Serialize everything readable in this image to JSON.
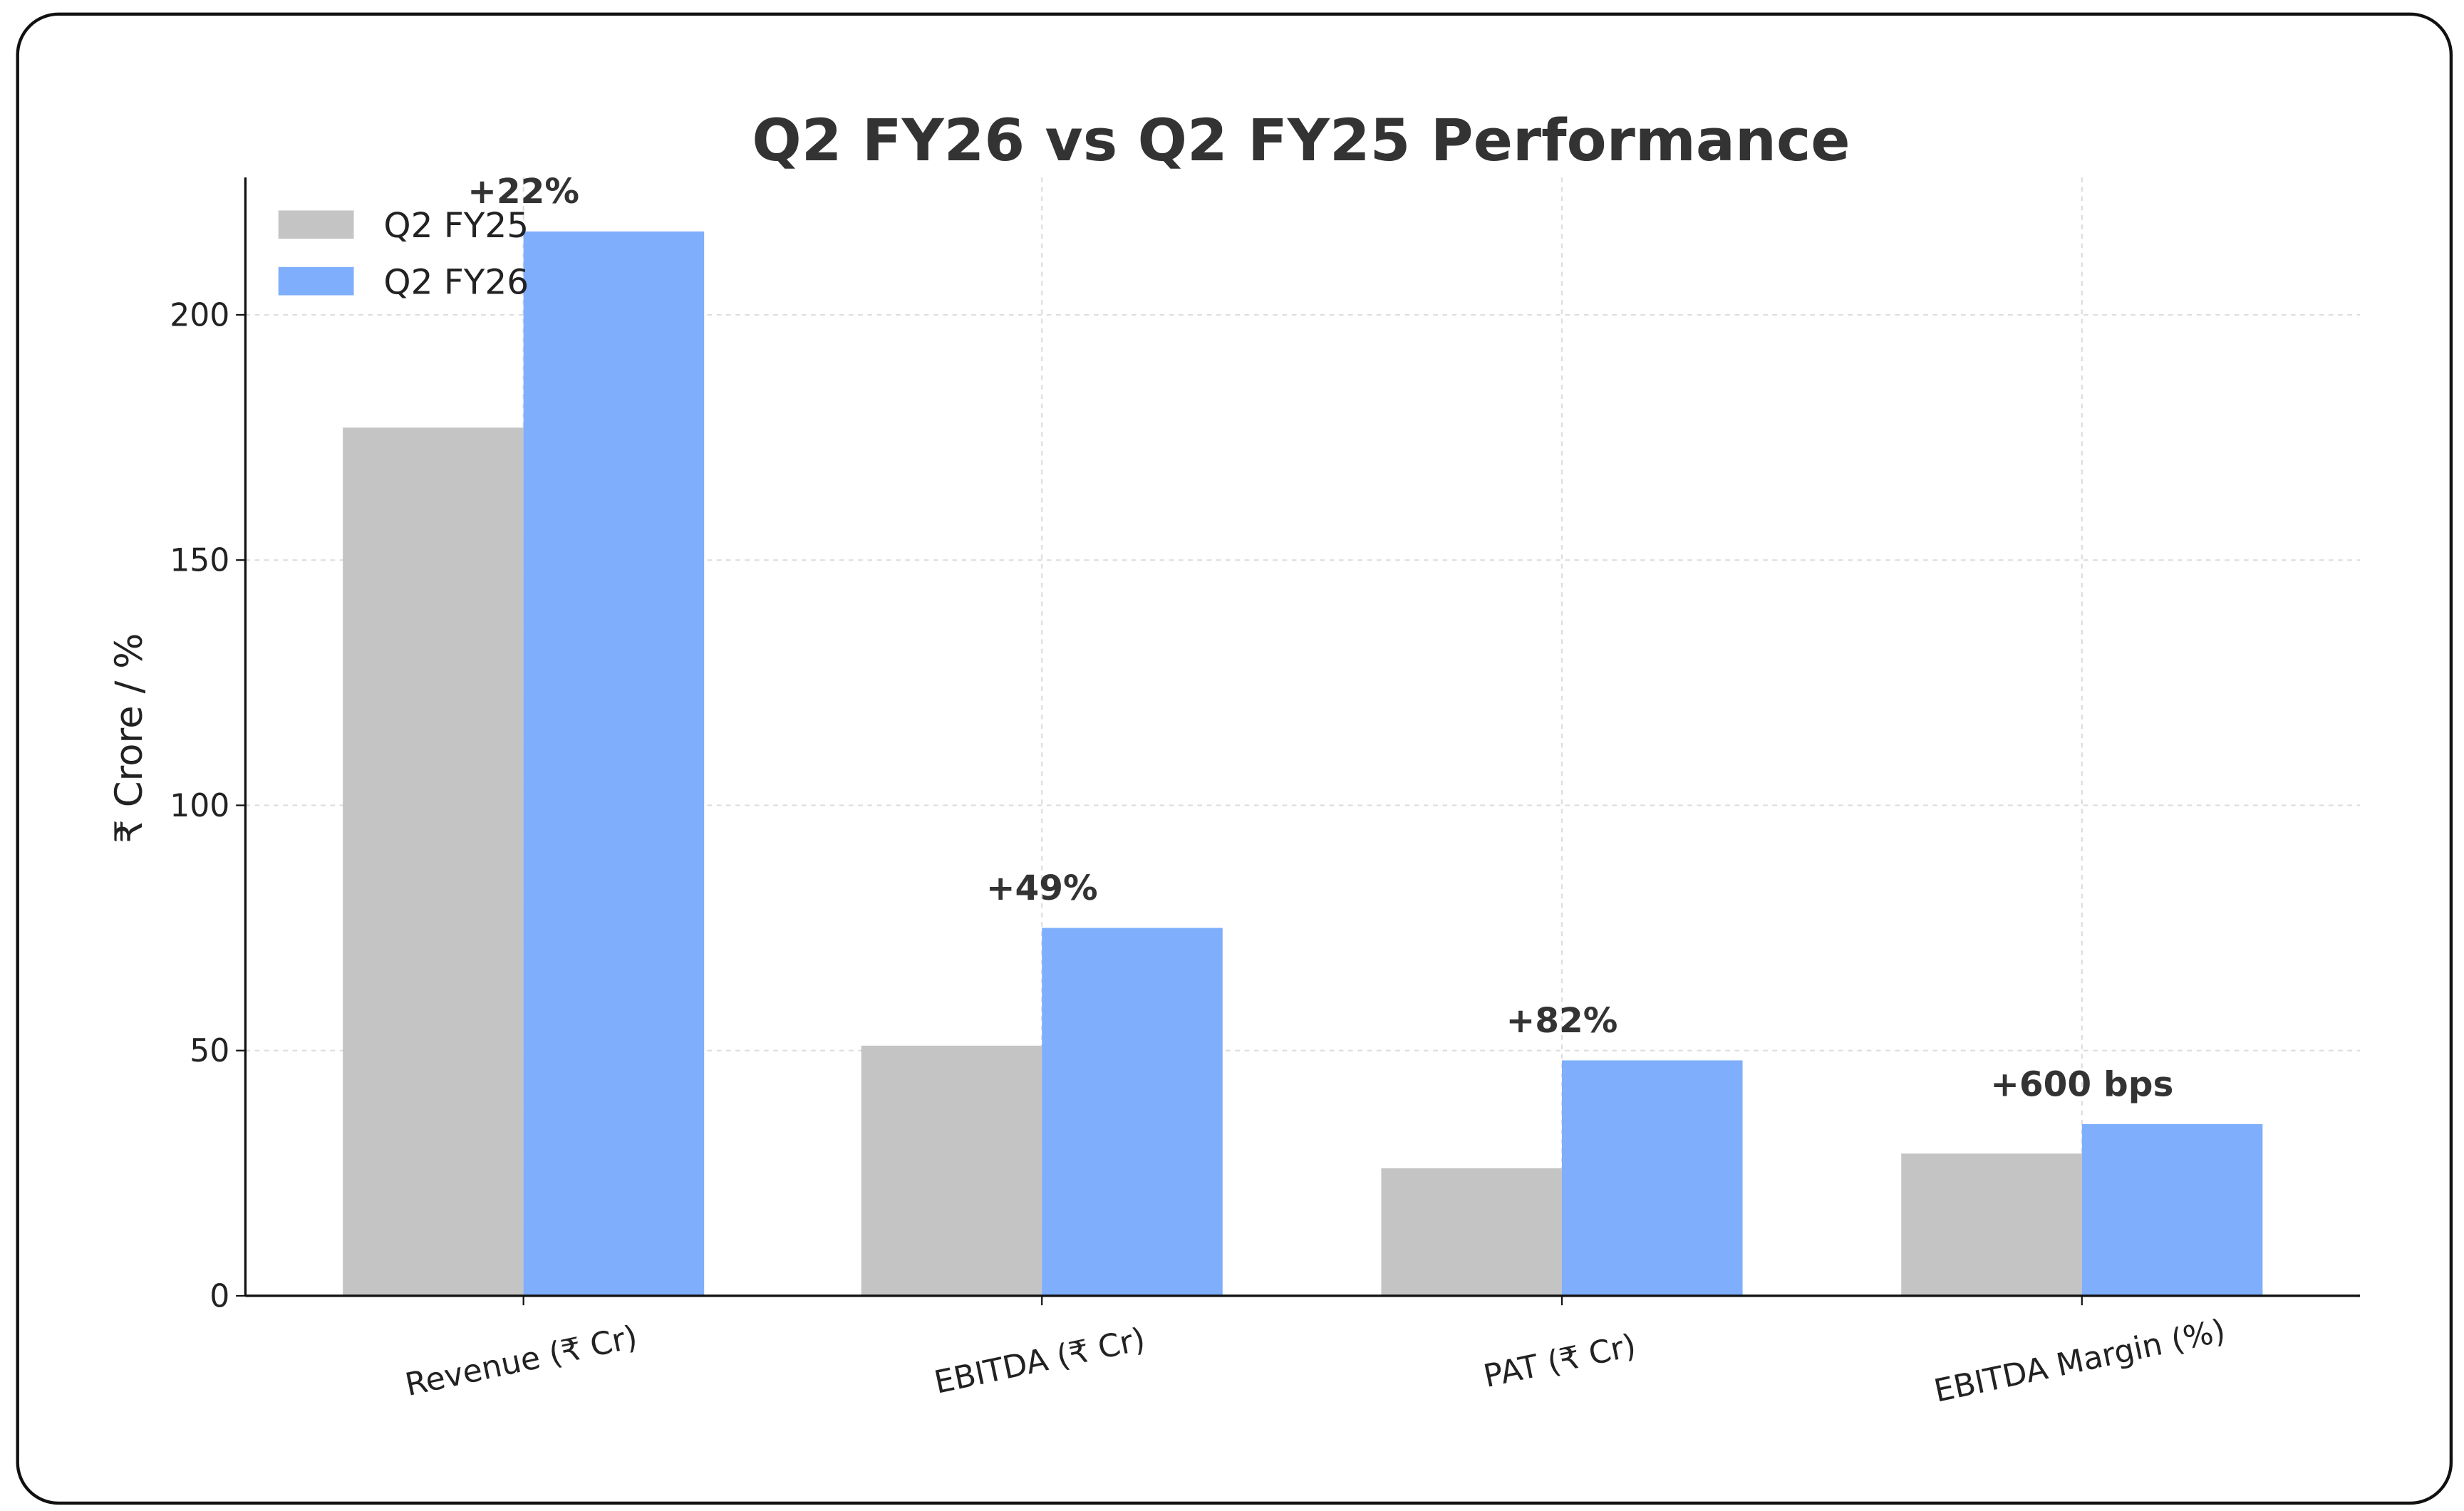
{
  "chart_data": {
    "type": "bar",
    "title": "Q2 FY26 vs Q2 FY25 Performance",
    "xlabel": "",
    "ylabel": "₹ Crore / %",
    "ylim": [
      0,
      228
    ],
    "yticks": [
      0,
      50,
      100,
      150,
      200
    ],
    "grid": true,
    "legend_position": "top-left",
    "categories": [
      "Revenue (₹ Cr)",
      "EBITDA (₹ Cr)",
      "PAT (₹ Cr)",
      "EBITDA Margin (%)"
    ],
    "series": [
      {
        "name": "Q2 FY25",
        "color": "#c4c4c4",
        "values": [
          177,
          51,
          26,
          29
        ]
      },
      {
        "name": "Q2 FY26",
        "color": "#7eaefc",
        "values": [
          217,
          75,
          48,
          35
        ]
      }
    ],
    "annotations": [
      "+22%",
      "+49%",
      "+82%",
      "+600 bps"
    ]
  }
}
